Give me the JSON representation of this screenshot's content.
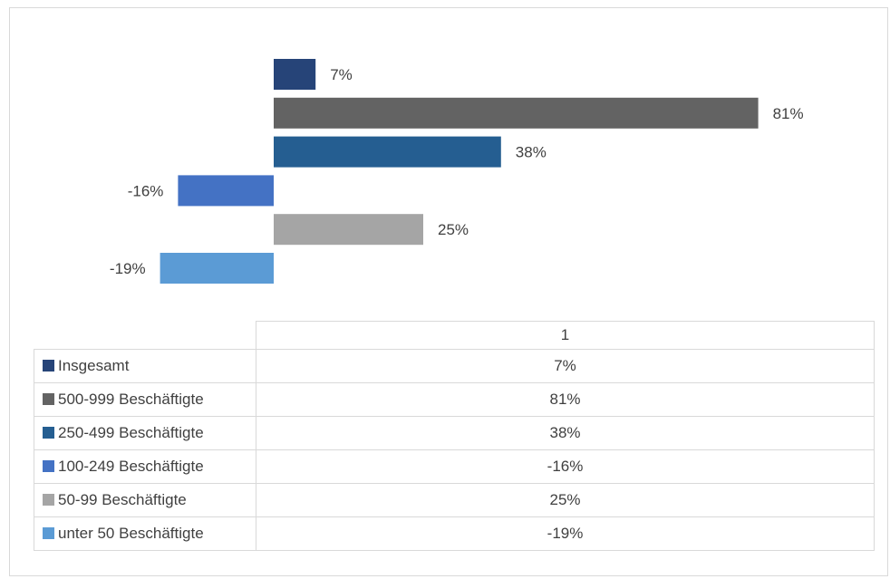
{
  "chart_data": {
    "type": "bar",
    "orientation": "horizontal",
    "categories": [
      "1"
    ],
    "xlim": [
      -25,
      85
    ],
    "series": [
      {
        "name": "Insgesamt",
        "value": 7,
        "label": "7%",
        "color": "#264478"
      },
      {
        "name": "500-999 Beschäftigte",
        "value": 81,
        "label": "81%",
        "color": "#636363"
      },
      {
        "name": "250-499 Beschäftigte",
        "value": 38,
        "label": "38%",
        "color": "#255e91"
      },
      {
        "name": "100-249 Beschäftigte",
        "value": -16,
        "label": "-16%",
        "color": "#4472c4"
      },
      {
        "name": "50-99 Beschäftigte",
        "value": 25,
        "label": "25%",
        "color": "#a5a5a5"
      },
      {
        "name": "unter 50 Beschäftigte",
        "value": -19,
        "label": "-19%",
        "color": "#5b9bd5"
      }
    ],
    "grid": false,
    "data_table": true
  },
  "table": {
    "header": "1"
  }
}
